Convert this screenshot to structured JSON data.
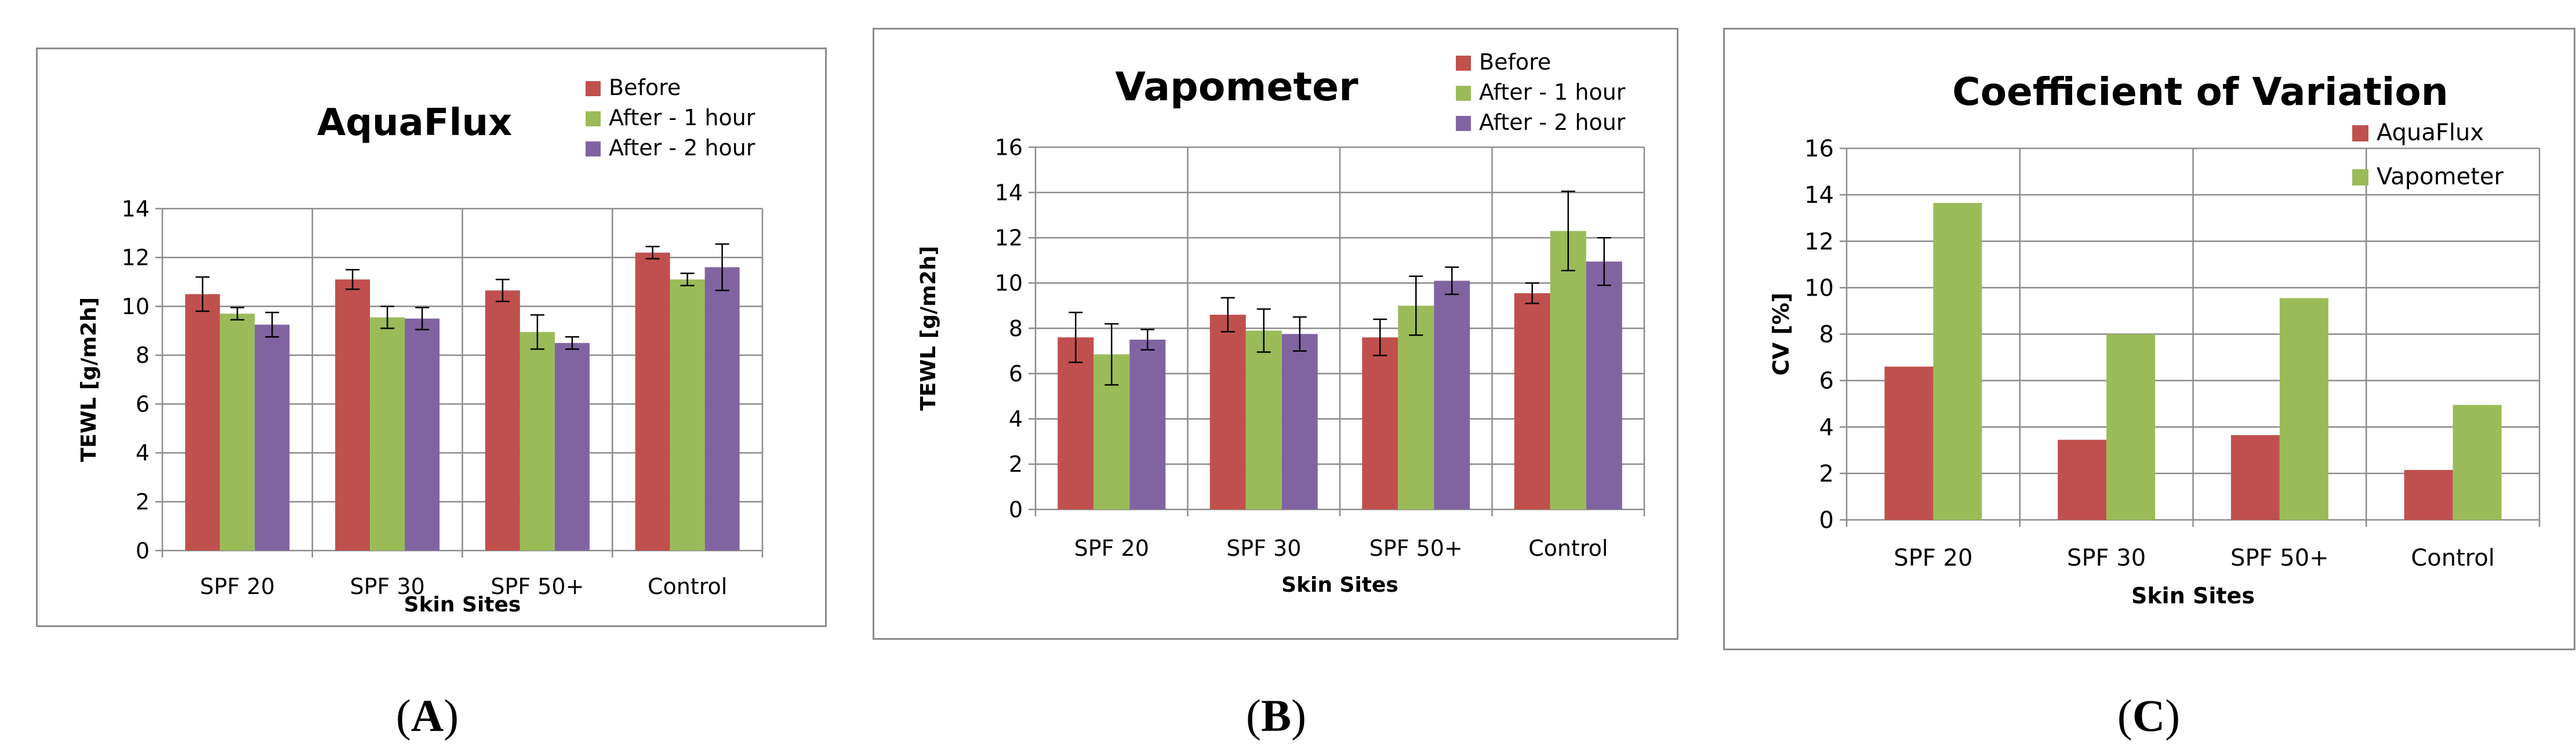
{
  "chart_data": [
    {
      "type": "bar",
      "title": "AquaFlux",
      "xlabel": "Skin Sites",
      "ylabel": "TEWL [g/m2h]",
      "ylim": [
        0,
        14
      ],
      "yticks": [
        0,
        2,
        4,
        6,
        8,
        10,
        12,
        14
      ],
      "categories": [
        "SPF 20",
        "SPF 30",
        "SPF 50+",
        "Control"
      ],
      "legend_position": "top-right",
      "series": [
        {
          "name": "Before",
          "color": "#c0504d",
          "values": [
            10.5,
            11.1,
            10.65,
            12.2
          ],
          "errors": [
            0.7,
            0.4,
            0.45,
            0.25
          ]
        },
        {
          "name": "After - 1 hour",
          "color": "#9bbb59",
          "values": [
            9.7,
            9.55,
            8.95,
            11.1
          ],
          "errors": [
            0.25,
            0.45,
            0.7,
            0.25
          ]
        },
        {
          "name": "After - 2 hour",
          "color": "#8064a2",
          "values": [
            9.25,
            9.5,
            8.5,
            11.6
          ],
          "errors": [
            0.5,
            0.45,
            0.25,
            0.95
          ]
        }
      ]
    },
    {
      "type": "bar",
      "title": "Vapometer",
      "xlabel": "Skin Sites",
      "ylabel": "TEWL [g/m2h]",
      "ylim": [
        0,
        16
      ],
      "yticks": [
        0,
        2,
        4,
        6,
        8,
        10,
        12,
        14,
        16
      ],
      "categories": [
        "SPF 20",
        "SPF 30",
        "SPF 50+",
        "Control"
      ],
      "legend_position": "top-right",
      "series": [
        {
          "name": "Before",
          "color": "#c0504d",
          "values": [
            7.6,
            8.6,
            7.6,
            9.55
          ],
          "errors": [
            1.1,
            0.75,
            0.8,
            0.45
          ]
        },
        {
          "name": "After - 1 hour",
          "color": "#9bbb59",
          "values": [
            6.85,
            7.9,
            9.0,
            12.3
          ],
          "errors": [
            1.35,
            0.95,
            1.3,
            1.75
          ]
        },
        {
          "name": "After - 2 hour",
          "color": "#8064a2",
          "values": [
            7.5,
            7.75,
            10.1,
            10.95
          ],
          "errors": [
            0.45,
            0.75,
            0.6,
            1.05
          ]
        }
      ]
    },
    {
      "type": "bar",
      "title": "Coefficient of Variation",
      "xlabel": "Skin Sites",
      "ylabel": "CV [%]",
      "ylim": [
        0,
        16
      ],
      "yticks": [
        0,
        2,
        4,
        6,
        8,
        10,
        12,
        14,
        16
      ],
      "categories": [
        "SPF 20",
        "SPF 30",
        "SPF 50+",
        "Control"
      ],
      "legend_position": "top-right",
      "series": [
        {
          "name": "AquaFlux",
          "color": "#c0504d",
          "values": [
            6.6,
            3.45,
            3.65,
            2.15
          ]
        },
        {
          "name": "Vapometer",
          "color": "#9bbb59",
          "values": [
            13.65,
            8.0,
            9.55,
            4.95
          ]
        }
      ]
    }
  ],
  "panel_labels": [
    "A",
    "B",
    "C"
  ]
}
